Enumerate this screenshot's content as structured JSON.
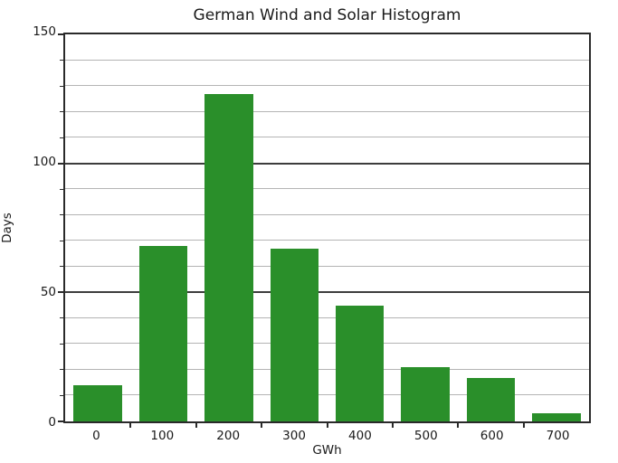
{
  "chart_data": {
    "type": "bar",
    "title": "German Wind and Solar Histogram",
    "xlabel": "GWh",
    "ylabel": "Days",
    "categories": [
      "0",
      "100",
      "200",
      "300",
      "400",
      "500",
      "600",
      "700"
    ],
    "values": [
      14,
      68,
      127,
      67,
      45,
      21,
      17,
      3
    ],
    "ylim": [
      0,
      150
    ],
    "yticks": [
      0,
      50,
      100,
      150
    ],
    "minor_grid_step": 10,
    "grid": true,
    "legend": "none",
    "bar_color": "#2a8f2a",
    "spine_color": "#2a2a2a",
    "major_grid_color": "#3d3d3d",
    "minor_grid_color": "#b4b4b4",
    "background_color": "#ffffff",
    "bar_fill_fraction": 0.74
  }
}
